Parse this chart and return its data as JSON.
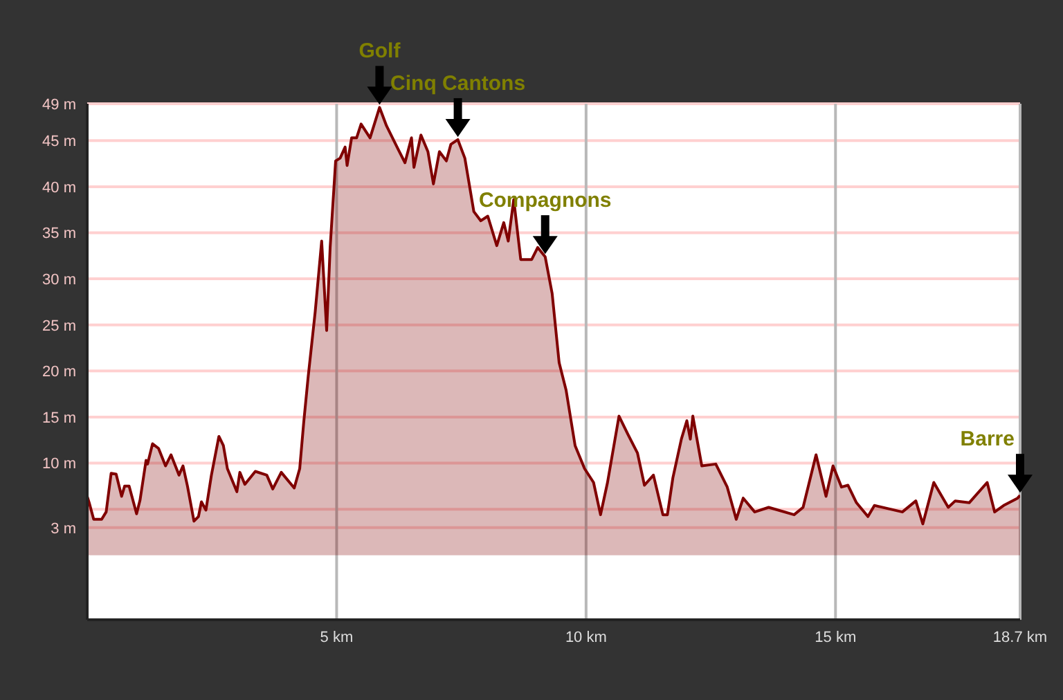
{
  "chart_data": {
    "type": "area",
    "x": [
      0,
      0.04,
      0.13,
      0.29,
      0.38,
      0.48,
      0.58,
      0.69,
      0.75,
      0.84,
      0.99,
      1.06,
      1.18,
      1.21,
      1.31,
      1.43,
      1.57,
      1.68,
      1.84,
      1.92,
      2.01,
      2.14,
      2.23,
      2.29,
      2.38,
      2.49,
      2.64,
      2.73,
      2.81,
      3.0,
      3.06,
      3.16,
      3.37,
      3.6,
      3.72,
      3.89,
      4.15,
      4.26,
      4.34,
      4.43,
      4.57,
      4.7,
      4.8,
      4.87,
      4.98,
      5.07,
      5.17,
      5.21,
      5.3,
      5.4,
      5.49,
      5.67,
      5.86,
      6.0,
      6.23,
      6.37,
      6.5,
      6.55,
      6.69,
      6.83,
      6.94,
      7.06,
      7.2,
      7.29,
      7.43,
      7.57,
      7.75,
      7.89,
      8.03,
      8.21,
      8.35,
      8.44,
      8.55,
      8.69,
      8.91,
      9.03,
      9.18,
      9.32,
      9.46,
      9.6,
      9.78,
      9.97,
      10.15,
      10.29,
      10.43,
      10.66,
      10.84,
      11.03,
      11.17,
      11.35,
      11.54,
      11.63,
      11.74,
      11.91,
      12.02,
      12.09,
      12.14,
      12.32,
      12.6,
      12.83,
      13.01,
      13.15,
      13.38,
      13.66,
      14.17,
      14.35,
      14.61,
      14.81,
      14.95,
      15.12,
      15.25,
      15.42,
      15.65,
      15.78,
      16.34,
      16.61,
      16.75,
      16.97,
      17.26,
      17.4,
      17.68,
      18.04,
      18.19,
      18.37,
      18.65,
      18.7
    ],
    "series": [
      {
        "color": "#800000",
        "values": [
          6.4,
          5.7,
          3.9,
          3.9,
          4.7,
          8.9,
          8.8,
          6.4,
          7.5,
          7.5,
          4.5,
          6.0,
          10.3,
          9.9,
          12.1,
          11.6,
          9.7,
          10.9,
          8.7,
          9.7,
          7.5,
          3.7,
          4.2,
          5.8,
          4.9,
          8.7,
          12.9,
          11.9,
          9.4,
          6.9,
          9.0,
          7.7,
          9.1,
          8.7,
          7.2,
          9.0,
          7.3,
          9.4,
          14.4,
          19.4,
          26.4,
          34.1,
          24.4,
          33.4,
          42.8,
          43.1,
          44.3,
          42.3,
          45.3,
          45.3,
          46.8,
          45.3,
          48.6,
          46.6,
          44.1,
          42.6,
          45.3,
          42.1,
          45.6,
          43.8,
          40.3,
          43.8,
          42.8,
          44.6,
          45.1,
          43.1,
          37.3,
          36.3,
          36.8,
          33.6,
          36.1,
          34.1,
          38.6,
          32.1,
          32.1,
          33.4,
          32.4,
          28.4,
          20.9,
          17.9,
          11.9,
          9.4,
          7.9,
          4.4,
          7.9,
          15.1,
          13.1,
          11.1,
          7.6,
          8.7,
          4.4,
          4.4,
          8.4,
          12.6,
          14.6,
          12.6,
          15.1,
          9.7,
          9.9,
          7.4,
          3.9,
          6.2,
          4.7,
          5.2,
          4.4,
          5.2,
          10.9,
          6.4,
          9.7,
          7.4,
          7.6,
          5.7,
          4.2,
          5.4,
          4.7,
          5.9,
          3.4,
          7.9,
          5.2,
          5.9,
          5.7,
          7.9,
          4.7,
          5.4,
          6.2,
          6.5
        ]
      }
    ],
    "xlim": [
      0,
      18.7
    ],
    "xticks": [
      {
        "value": 5,
        "label": "5 km"
      },
      {
        "value": 10,
        "label": "10 km"
      },
      {
        "value": 15,
        "label": "15 km"
      },
      {
        "value": 18.7,
        "label": "18.7 km"
      }
    ],
    "ylim": [
      -7,
      49
    ],
    "yticks": [
      {
        "value": 3,
        "label": "3 m"
      },
      {
        "value": 5,
        "label": null
      },
      {
        "value": 10,
        "label": "10 m"
      },
      {
        "value": 15,
        "label": "15 m"
      },
      {
        "value": 20,
        "label": "20 m"
      },
      {
        "value": 25,
        "label": "25 m"
      },
      {
        "value": 30,
        "label": "30 m"
      },
      {
        "value": 35,
        "label": "35 m"
      },
      {
        "value": 40,
        "label": "40 m"
      },
      {
        "value": 45,
        "label": "45 m"
      },
      {
        "value": 49,
        "label": "49 m"
      }
    ],
    "grid": true,
    "annotations": [
      {
        "text": "Golf",
        "x": 5.86,
        "y": 48.6
      },
      {
        "text": "Cinq Cantons",
        "x": 7.43,
        "y": 45.1
      },
      {
        "text": "Compagnons",
        "x": 9.18,
        "y": 32.4
      },
      {
        "text": "Barre",
        "x": 18.7,
        "y": 6.5
      }
    ]
  }
}
